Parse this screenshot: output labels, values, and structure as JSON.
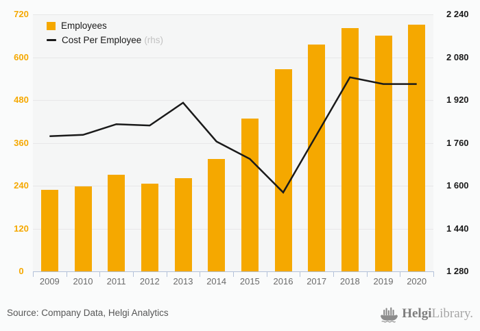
{
  "legend": {
    "bar_label": "Employees",
    "line_label": "Cost Per Employee",
    "line_suffix": "(rhs)"
  },
  "footer": {
    "source": "Source: Company Data, Helgi Analytics",
    "logo_bold": "Helgi",
    "logo_light": "Library."
  },
  "icons": {
    "logo_ship": "viking-ship-icon"
  },
  "colors": {
    "bar": "#F5A800",
    "line": "#1A1A1A",
    "left_tick": "#F5A800",
    "right_tick": "#1A1A1A",
    "grid": "#E7E7E8",
    "axis": "#B3C1D9",
    "plot_bg": "#F5F6F6",
    "page_bg": "#FAFBFB"
  },
  "chart_data": {
    "type": "bar+line combo",
    "title": "",
    "categories": [
      "2009",
      "2010",
      "2011",
      "2012",
      "2013",
      "2014",
      "2015",
      "2016",
      "2017",
      "2018",
      "2019",
      "2020"
    ],
    "series": [
      {
        "name": "Employees",
        "type": "bar",
        "axis": "left",
        "values": [
          228,
          238,
          271,
          246,
          261,
          315,
          428,
          567,
          636,
          681,
          661,
          691
        ]
      },
      {
        "name": "Cost Per Employee (rhs)",
        "type": "line",
        "axis": "right",
        "values": [
          1785,
          1790,
          1830,
          1825,
          1910,
          1765,
          1700,
          1575,
          1790,
          2005,
          1980,
          1980
        ]
      }
    ],
    "left_axis": {
      "min": 0,
      "max": 720,
      "tick_labels": [
        "720",
        "600",
        "480",
        "360",
        "240",
        "120",
        "0"
      ]
    },
    "right_axis": {
      "min": 1280,
      "max": 2240,
      "tick_labels": [
        "2 240",
        "2 080",
        "1 920",
        "1 760",
        "1 600",
        "1 440",
        "1 280"
      ]
    },
    "grid": "horizontal only",
    "legend_position": "top-left inside plot"
  }
}
